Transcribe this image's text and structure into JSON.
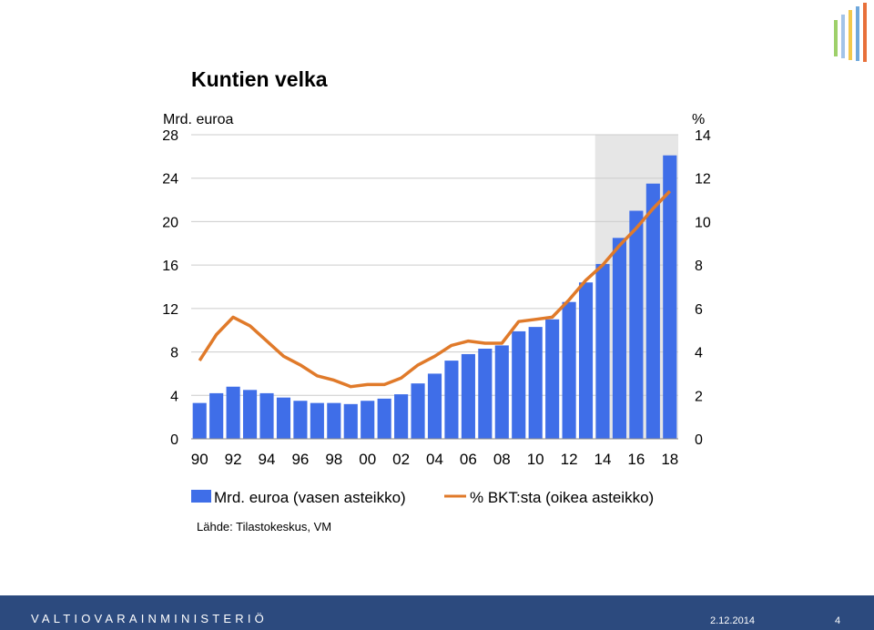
{
  "chart_data": {
    "type": "bar",
    "title": "Kuntien velka",
    "ylabel_left": "Mrd. euroa",
    "ylabel_right": "%",
    "ylim_left": [
      0,
      28
    ],
    "ylim_right": [
      0,
      14
    ],
    "yticks_left": [
      "0",
      "4",
      "8",
      "12",
      "16",
      "20",
      "24",
      "28"
    ],
    "yticks_right": [
      "0",
      "2",
      "4",
      "6",
      "8",
      "10",
      "12",
      "14"
    ],
    "x_labels": [
      "90",
      "92",
      "94",
      "96",
      "98",
      "00",
      "02",
      "04",
      "06",
      "08",
      "10",
      "12",
      "14",
      "16",
      "18"
    ],
    "years": [
      1990,
      1991,
      1992,
      1993,
      1994,
      1995,
      1996,
      1997,
      1998,
      1999,
      2000,
      2001,
      2002,
      2003,
      2004,
      2005,
      2006,
      2007,
      2008,
      2009,
      2010,
      2011,
      2012,
      2013,
      2014,
      2015,
      2016,
      2017,
      2018
    ],
    "forecast_from": 2014,
    "series": [
      {
        "name": "Mrd. euroa (vasen asteikko)",
        "type": "bar",
        "axis": "left",
        "color": "#3f6ee8",
        "values": [
          3.3,
          4.2,
          4.8,
          4.5,
          4.2,
          3.8,
          3.5,
          3.3,
          3.3,
          3.2,
          3.5,
          3.7,
          4.1,
          5.1,
          6.0,
          7.2,
          7.8,
          8.3,
          8.6,
          9.9,
          10.3,
          11.0,
          12.6,
          14.4,
          16.1,
          18.5,
          21.0,
          23.5,
          26.1
        ]
      },
      {
        "name": "% BKT:sta (oikea asteikko)",
        "type": "line",
        "axis": "right",
        "color": "#e07a2a",
        "values": [
          3.6,
          4.8,
          5.6,
          5.2,
          4.5,
          3.8,
          3.4,
          2.9,
          2.7,
          2.4,
          2.5,
          2.5,
          2.8,
          3.4,
          3.8,
          4.3,
          4.5,
          4.4,
          4.4,
          5.4,
          5.5,
          5.6,
          6.4,
          7.3,
          8.0,
          8.9,
          9.7,
          10.6,
          11.4
        ]
      }
    ],
    "grid": true,
    "legend_position": "bottom",
    "source": "Lähde: Tilastokeskus, VM"
  },
  "footer": {
    "organization": "VALTIOVARAINMINISTERIÖ",
    "date": "2.12.2014",
    "page": "4"
  },
  "colors": {
    "footer_bg": "#2c4a7e",
    "forecast_shade": "#e6e6e6",
    "grid": "#cccccc"
  }
}
